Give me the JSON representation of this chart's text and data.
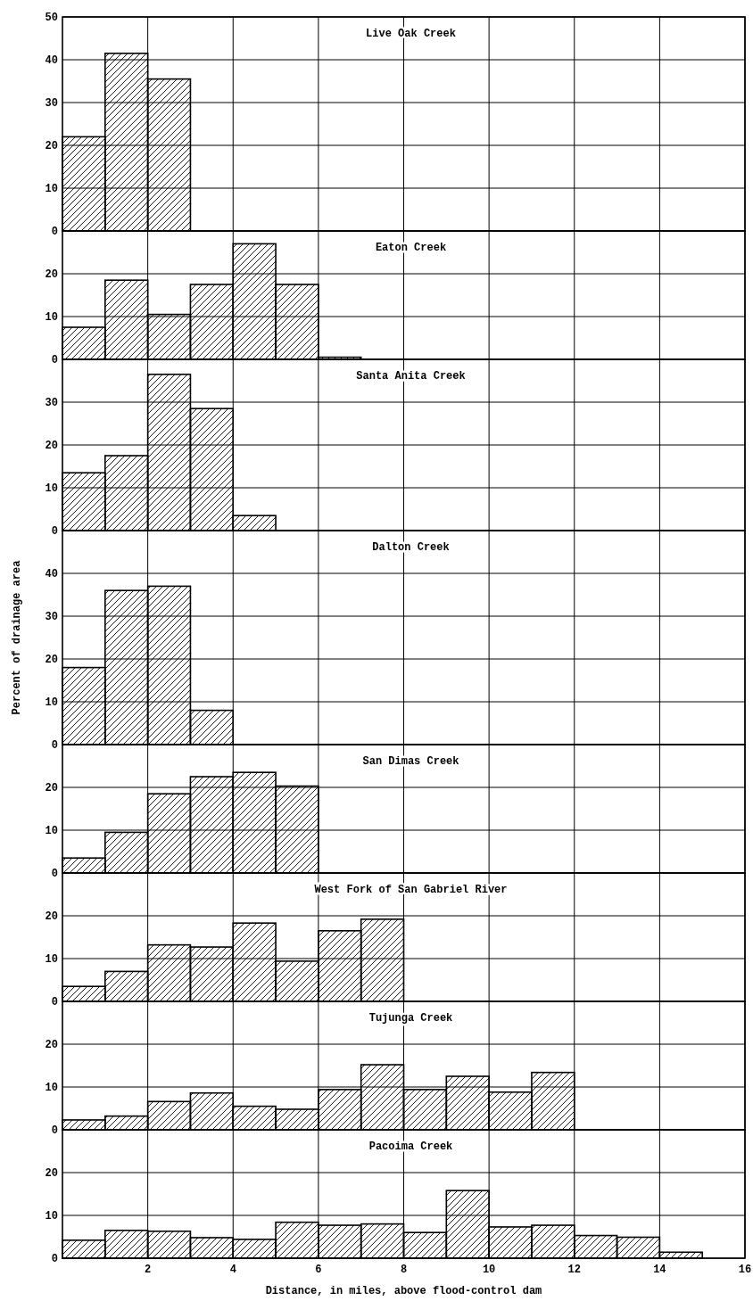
{
  "chart_data": [
    {
      "type": "histogram",
      "title": "Live Oak Creek",
      "bins": [
        0,
        1,
        2,
        3
      ],
      "values": [
        22,
        41.5,
        35.5
      ],
      "color": "#000000",
      "xlim": [
        0,
        16
      ],
      "xticks": [
        2,
        4,
        6,
        8,
        10,
        12,
        14,
        16
      ],
      "ylim": [
        0,
        50
      ],
      "yticks": [
        0,
        10,
        20,
        30,
        40,
        50
      ],
      "grid": true,
      "tick_labels": "y"
    },
    {
      "type": "histogram",
      "title": "Eaton Creek",
      "bins": [
        0,
        1,
        2,
        3,
        4,
        5,
        6,
        7
      ],
      "values": [
        7.5,
        18.5,
        10.5,
        17.5,
        27,
        17.5,
        0.5
      ],
      "color": "#000000",
      "xlim": [
        0,
        16
      ],
      "xticks": [
        2,
        4,
        6,
        8,
        10,
        12,
        14,
        16
      ],
      "ylim": [
        0,
        30
      ],
      "yticks": [
        0,
        10,
        20
      ],
      "grid": true,
      "tick_labels": "y"
    },
    {
      "type": "histogram",
      "title": "Santa Anita Creek",
      "bins": [
        0,
        1,
        2,
        3,
        4,
        5
      ],
      "values": [
        13.5,
        17.5,
        36.5,
        28.5,
        3.5
      ],
      "color": "#000000",
      "xlim": [
        0,
        16
      ],
      "xticks": [
        2,
        4,
        6,
        8,
        10,
        12,
        14,
        16
      ],
      "ylim": [
        0,
        40
      ],
      "yticks": [
        0,
        10,
        20,
        30
      ],
      "grid": true,
      "tick_labels": "y"
    },
    {
      "type": "histogram",
      "title": "Dalton Creek",
      "ylabel": "Percent of drainage area",
      "bins": [
        0,
        1,
        2,
        3,
        4
      ],
      "values": [
        18,
        36,
        37,
        8
      ],
      "color": "#000000",
      "xlim": [
        0,
        16
      ],
      "xticks": [
        2,
        4,
        6,
        8,
        10,
        12,
        14,
        16
      ],
      "ylim": [
        0,
        50
      ],
      "yticks": [
        0,
        10,
        20,
        30,
        40
      ],
      "grid": true,
      "tick_labels": "y"
    },
    {
      "type": "histogram",
      "title": "San Dimas Creek",
      "bins": [
        0,
        1,
        2,
        3,
        4,
        5,
        6
      ],
      "values": [
        3.5,
        9.5,
        18.5,
        22.5,
        23.5,
        20.3
      ],
      "color": "#000000",
      "xlim": [
        0,
        16
      ],
      "xticks": [
        2,
        4,
        6,
        8,
        10,
        12,
        14,
        16
      ],
      "ylim": [
        0,
        30
      ],
      "yticks": [
        0,
        10,
        20
      ],
      "grid": true,
      "tick_labels": "y"
    },
    {
      "type": "histogram",
      "title": "West Fork of San Gabriel River",
      "bins": [
        0,
        1,
        2,
        3,
        4,
        5,
        6,
        7,
        8
      ],
      "values": [
        3.5,
        7,
        13.2,
        12.7,
        18.3,
        9.4,
        16.5,
        19.2
      ],
      "color": "#000000",
      "xlim": [
        0,
        16
      ],
      "xticks": [
        2,
        4,
        6,
        8,
        10,
        12,
        14,
        16
      ],
      "ylim": [
        0,
        30
      ],
      "yticks": [
        0,
        10,
        20
      ],
      "grid": true,
      "tick_labels": "y"
    },
    {
      "type": "histogram",
      "title": "Tujunga Creek",
      "bins": [
        0,
        1,
        2,
        3,
        4,
        5,
        6,
        7,
        8,
        9,
        10,
        11,
        12
      ],
      "values": [
        2.3,
        3.2,
        6.6,
        8.6,
        5.5,
        4.8,
        9.4,
        15.2,
        9.4,
        12.5,
        8.8,
        13.4
      ],
      "color": "#000000",
      "xlim": [
        0,
        16
      ],
      "xticks": [
        2,
        4,
        6,
        8,
        10,
        12,
        14,
        16
      ],
      "ylim": [
        0,
        30
      ],
      "yticks": [
        0,
        10,
        20
      ],
      "grid": true,
      "tick_labels": "y"
    },
    {
      "type": "histogram",
      "title": "Pacoima Creek",
      "xlabel": "Distance, in miles, above flood-control dam",
      "bins": [
        0,
        1,
        2,
        3,
        4,
        5,
        6,
        7,
        8,
        9,
        10,
        11,
        12,
        13,
        14,
        15
      ],
      "values": [
        4.2,
        6.5,
        6.3,
        4.8,
        4.4,
        8.4,
        7.7,
        8,
        6,
        15.8,
        7.3,
        7.7,
        5.3,
        4.9,
        1.4
      ],
      "color": "#000000",
      "xlim": [
        0,
        16
      ],
      "xticks": [
        2,
        4,
        6,
        8,
        10,
        12,
        14,
        16
      ],
      "ylim": [
        0,
        30
      ],
      "yticks": [
        0,
        10,
        20
      ],
      "grid": true
    }
  ]
}
